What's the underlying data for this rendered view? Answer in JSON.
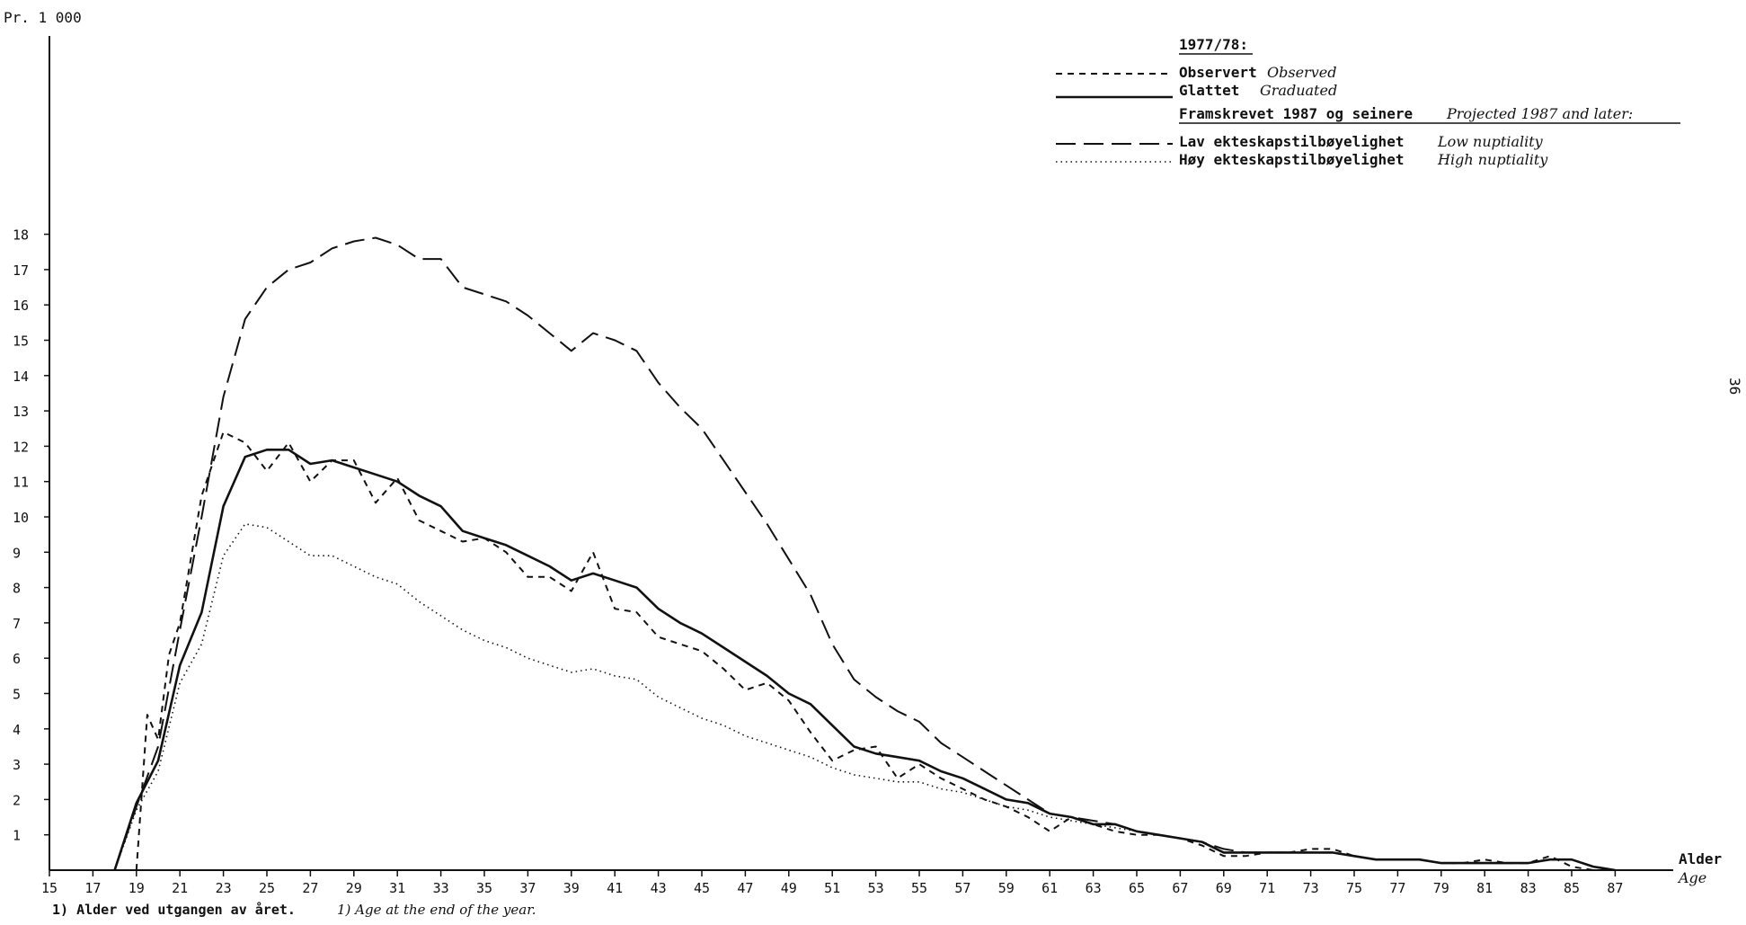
{
  "page_number": "36",
  "footnote": {
    "norwegian": "1) Alder ved utgangen av året.",
    "english": "1) Age at the end of the year."
  },
  "chart_data": {
    "type": "line",
    "ylabel": "Pr. 1 000",
    "xlabel": "Alder",
    "xlabel_en": "Age",
    "xlim": [
      15,
      88
    ],
    "ylim": [
      0,
      19
    ],
    "x_ticks": [
      15,
      17,
      19,
      21,
      23,
      25,
      27,
      29,
      31,
      33,
      35,
      37,
      39,
      41,
      43,
      45,
      47,
      49,
      51,
      53,
      55,
      57,
      59,
      61,
      63,
      65,
      67,
      69,
      71,
      73,
      75,
      77,
      79,
      81,
      83,
      85,
      87
    ],
    "y_ticks": [
      1,
      2,
      3,
      4,
      5,
      6,
      7,
      8,
      9,
      10,
      11,
      12,
      13,
      14,
      15,
      16,
      17,
      18
    ],
    "y_tick_labels": [
      "1",
      "2",
      "3",
      "4",
      "5",
      "6",
      "7",
      "8",
      "9",
      "10",
      "11",
      "12",
      "13",
      "14",
      "15",
      "16",
      "17",
      "18"
    ],
    "legend": {
      "heading_period": "1977/78:",
      "heading_projected": "Framskrevet 1987 og seinere",
      "heading_projected_en": "Projected 1987 and later:",
      "placement": "top-right"
    },
    "series": [
      {
        "name": "Observert",
        "name_en": "Observed",
        "style": "dashed",
        "x": [
          19,
          19.5,
          20,
          20.5,
          21,
          22,
          23,
          24,
          25,
          26,
          27,
          28,
          29,
          30,
          31,
          32,
          33,
          34,
          35,
          36,
          37,
          38,
          39,
          40,
          41,
          42,
          43,
          44,
          45,
          46,
          47,
          48,
          49,
          50,
          51,
          52,
          53,
          54,
          55,
          56,
          57,
          58,
          59,
          60,
          61,
          62,
          63,
          64,
          65,
          66,
          67,
          68,
          69,
          70,
          71,
          72,
          73,
          74,
          75,
          76,
          77,
          78,
          79,
          80,
          81,
          82,
          83,
          84,
          85,
          86,
          87
        ],
        "y": [
          0,
          4.4,
          3.7,
          6.1,
          7.0,
          10.6,
          12.4,
          12.1,
          11.3,
          12.1,
          11.0,
          11.6,
          11.6,
          10.4,
          11.1,
          9.9,
          9.6,
          9.3,
          9.4,
          9.0,
          8.3,
          8.3,
          7.9,
          9.0,
          7.4,
          7.3,
          6.6,
          6.4,
          6.2,
          5.7,
          5.1,
          5.3,
          4.8,
          3.9,
          3.1,
          3.4,
          3.5,
          2.6,
          3.0,
          2.6,
          2.3,
          2.0,
          1.8,
          1.5,
          1.1,
          1.5,
          1.3,
          1.1,
          1.0,
          1.0,
          0.9,
          0.7,
          0.4,
          0.4,
          0.5,
          0.5,
          0.6,
          0.6,
          0.4,
          0.3,
          0.3,
          0.3,
          0.2,
          0.2,
          0.3,
          0.2,
          0.2,
          0.4,
          0.1,
          0.0,
          0.0
        ]
      },
      {
        "name": "Glattet",
        "name_en": "Graduated",
        "style": "solid",
        "x": [
          18,
          19,
          20,
          21,
          22,
          23,
          24,
          25,
          26,
          27,
          28,
          29,
          30,
          31,
          32,
          33,
          34,
          35,
          36,
          37,
          38,
          39,
          40,
          41,
          42,
          43,
          44,
          45,
          46,
          47,
          48,
          49,
          50,
          51,
          52,
          53,
          54,
          55,
          56,
          57,
          58,
          59,
          60,
          61,
          62,
          63,
          64,
          65,
          66,
          67,
          68,
          69,
          70,
          71,
          72,
          73,
          74,
          75,
          76,
          77,
          78,
          79,
          80,
          81,
          82,
          83,
          84,
          85,
          86,
          87
        ],
        "y": [
          0,
          1.9,
          3.1,
          5.8,
          7.3,
          10.3,
          11.7,
          11.9,
          11.9,
          11.5,
          11.6,
          11.4,
          11.2,
          11.0,
          10.6,
          10.3,
          9.6,
          9.4,
          9.2,
          8.9,
          8.6,
          8.2,
          8.4,
          8.2,
          8.0,
          7.4,
          7.0,
          6.7,
          6.3,
          5.9,
          5.5,
          5.0,
          4.7,
          4.1,
          3.5,
          3.3,
          3.2,
          3.1,
          2.8,
          2.6,
          2.3,
          2.0,
          1.9,
          1.6,
          1.5,
          1.3,
          1.3,
          1.1,
          1.0,
          0.9,
          0.8,
          0.5,
          0.5,
          0.5,
          0.5,
          0.5,
          0.5,
          0.4,
          0.3,
          0.3,
          0.3,
          0.2,
          0.2,
          0.2,
          0.2,
          0.2,
          0.3,
          0.3,
          0.1,
          0.0
        ]
      },
      {
        "name": "Lav ekteskapstilbøyelighet",
        "name_en": "Low nuptiality",
        "style": "long-dash",
        "x": [
          18,
          19,
          20,
          21,
          22,
          23,
          24,
          25,
          26,
          27,
          28,
          29,
          30,
          31,
          32,
          33,
          34,
          35,
          36,
          37,
          38,
          39,
          40,
          41,
          42,
          43,
          44,
          45,
          46,
          47,
          48,
          49,
          50,
          51,
          52,
          53,
          54,
          55,
          56,
          57,
          58,
          59,
          60,
          61,
          62,
          63,
          64,
          65,
          66,
          67,
          68,
          69,
          70,
          71,
          72,
          73,
          74,
          75,
          76,
          77,
          78,
          79,
          80,
          81,
          82,
          83,
          84,
          85,
          86,
          87
        ],
        "y": [
          0,
          1.8,
          3.5,
          6.8,
          10.0,
          13.4,
          15.6,
          16.5,
          17.0,
          17.2,
          17.6,
          17.8,
          17.9,
          17.7,
          17.3,
          17.3,
          16.5,
          16.3,
          16.1,
          15.7,
          15.2,
          14.7,
          15.2,
          15.0,
          14.7,
          13.8,
          13.1,
          12.5,
          11.6,
          10.7,
          9.8,
          8.8,
          7.8,
          6.4,
          5.4,
          4.9,
          4.5,
          4.2,
          3.6,
          3.2,
          2.8,
          2.4,
          2.0,
          1.6,
          1.5,
          1.4,
          1.3,
          1.1,
          1.0,
          0.9,
          0.8,
          0.6,
          0.5,
          0.5,
          0.5,
          0.5,
          0.5,
          0.4,
          0.3,
          0.3,
          0.3,
          0.2,
          0.2,
          0.2,
          0.2,
          0.2,
          0.3,
          0.3,
          0.1,
          0.0
        ]
      },
      {
        "name": "Høy ekteskapstilbøyelighet",
        "name_en": "High nuptiality",
        "style": "dotted",
        "x": [
          18,
          19,
          20,
          21,
          22,
          23,
          24,
          25,
          26,
          27,
          28,
          29,
          30,
          31,
          32,
          33,
          34,
          35,
          36,
          37,
          38,
          39,
          40,
          41,
          42,
          43,
          44,
          45,
          46,
          47,
          48,
          49,
          50,
          51,
          52,
          53,
          54,
          55,
          56,
          57,
          58,
          59,
          60,
          61,
          62,
          63,
          64,
          65,
          66,
          67,
          68,
          69,
          70,
          71,
          72,
          73,
          74,
          75,
          76,
          77,
          78,
          79,
          80,
          81,
          82,
          83,
          84,
          85,
          86,
          87
        ],
        "y": [
          0,
          1.7,
          2.8,
          5.3,
          6.4,
          8.9,
          9.8,
          9.7,
          9.3,
          8.9,
          8.9,
          8.6,
          8.3,
          8.1,
          7.6,
          7.2,
          6.8,
          6.5,
          6.3,
          6.0,
          5.8,
          5.6,
          5.7,
          5.5,
          5.4,
          4.9,
          4.6,
          4.3,
          4.1,
          3.8,
          3.6,
          3.4,
          3.2,
          2.9,
          2.7,
          2.6,
          2.5,
          2.5,
          2.3,
          2.2,
          2.0,
          1.8,
          1.7,
          1.5,
          1.4,
          1.3,
          1.2,
          1.1,
          1.0,
          0.9,
          0.8,
          0.5,
          0.5,
          0.5,
          0.5,
          0.5,
          0.5,
          0.4,
          0.3,
          0.3,
          0.3,
          0.2,
          0.2,
          0.2,
          0.2,
          0.2,
          0.3,
          0.3,
          0.1,
          0.0
        ]
      }
    ]
  }
}
